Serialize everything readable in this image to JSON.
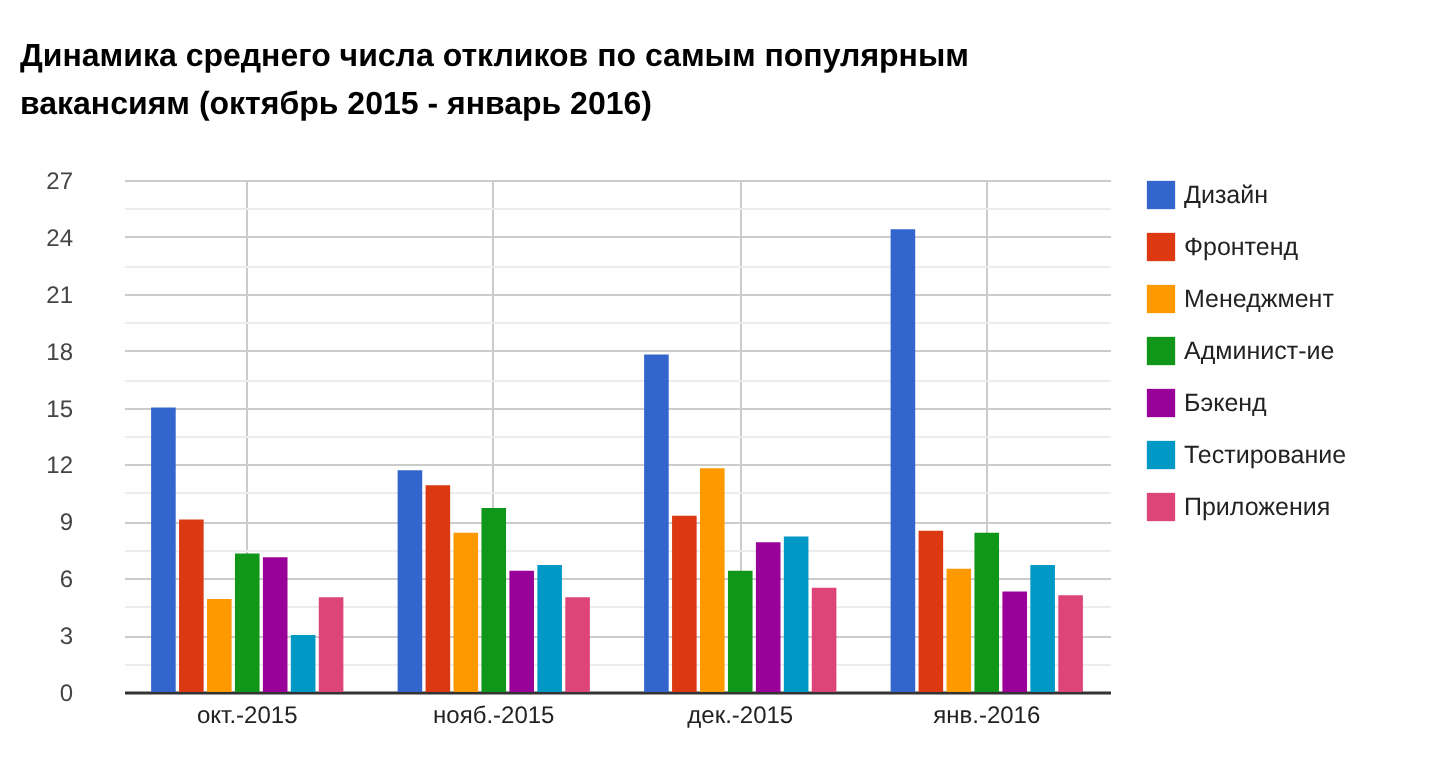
{
  "chart_data": {
    "type": "bar",
    "title": "Динамика среднего числа откликов по самым популярным вакансиям (октябрь 2015 - январь 2016)",
    "categories": [
      "окт.-2015",
      "нояб.-2015",
      "дек.-2015",
      "янв.-2016"
    ],
    "series": [
      {
        "name": "Дизайн",
        "color": "#3366cc",
        "values": [
          15.0,
          11.7,
          17.8,
          24.4
        ]
      },
      {
        "name": "Фронтенд",
        "color": "#dc3912",
        "values": [
          9.1,
          10.9,
          9.3,
          8.5
        ]
      },
      {
        "name": "Менеджмент",
        "color": "#ff9900",
        "values": [
          4.9,
          8.4,
          11.8,
          6.5
        ]
      },
      {
        "name": "Админист-ие",
        "color": "#109618",
        "values": [
          7.3,
          9.7,
          6.4,
          8.4
        ]
      },
      {
        "name": "Бэкенд",
        "color": "#990099",
        "values": [
          7.1,
          6.4,
          7.9,
          5.3
        ]
      },
      {
        "name": "Тестирование",
        "color": "#0099c6",
        "values": [
          3.0,
          6.7,
          8.2,
          6.7
        ]
      },
      {
        "name": "Приложения",
        "color": "#dd4477",
        "values": [
          5.0,
          5.0,
          5.5,
          5.1
        ]
      }
    ],
    "ylim": [
      0,
      27
    ],
    "yticks": [
      0,
      {
        "value": 1.5,
        "label": null
      },
      3,
      {
        "value": 4.5,
        "label": null
      },
      6,
      {
        "value": 7.5,
        "label": null
      },
      9,
      {
        "value": 10.5,
        "label": null
      },
      12,
      {
        "value": 13.5,
        "label": null
      },
      15,
      {
        "value": 16.5,
        "label": null
      },
      18,
      {
        "value": 19.5,
        "label": null
      },
      21,
      {
        "value": 22.5,
        "label": null
      },
      24,
      {
        "value": 25.5,
        "label": null
      },
      27
    ],
    "grid": true,
    "legend": "right"
  }
}
